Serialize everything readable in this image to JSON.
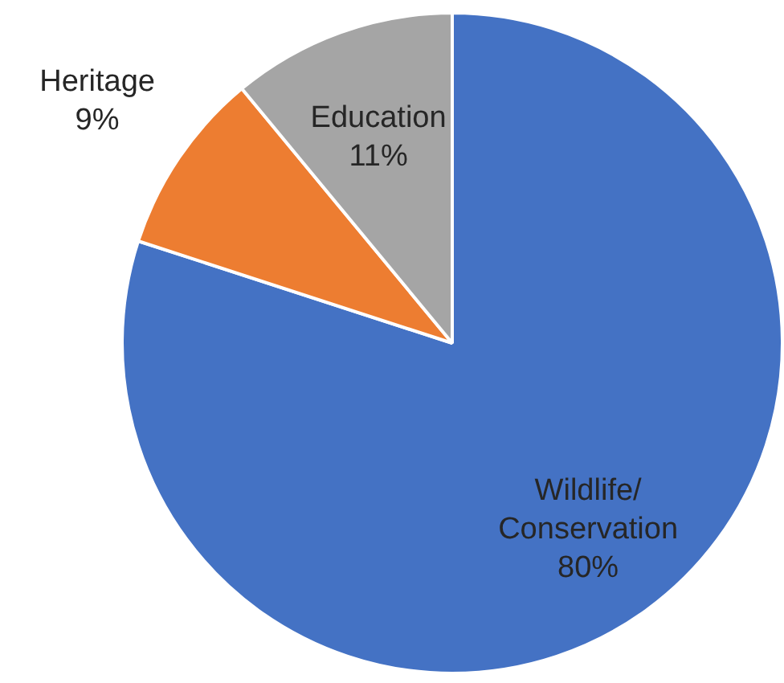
{
  "chart_data": {
    "type": "pie",
    "categories": [
      "Wildlife/ Conservation",
      "Heritage",
      "Education"
    ],
    "values": [
      80,
      9,
      11
    ],
    "colors": [
      "#4472c4",
      "#ed7d31",
      "#a5a5a5"
    ],
    "value_labels": [
      "80%",
      "9%",
      "11%"
    ],
    "legend": false
  }
}
